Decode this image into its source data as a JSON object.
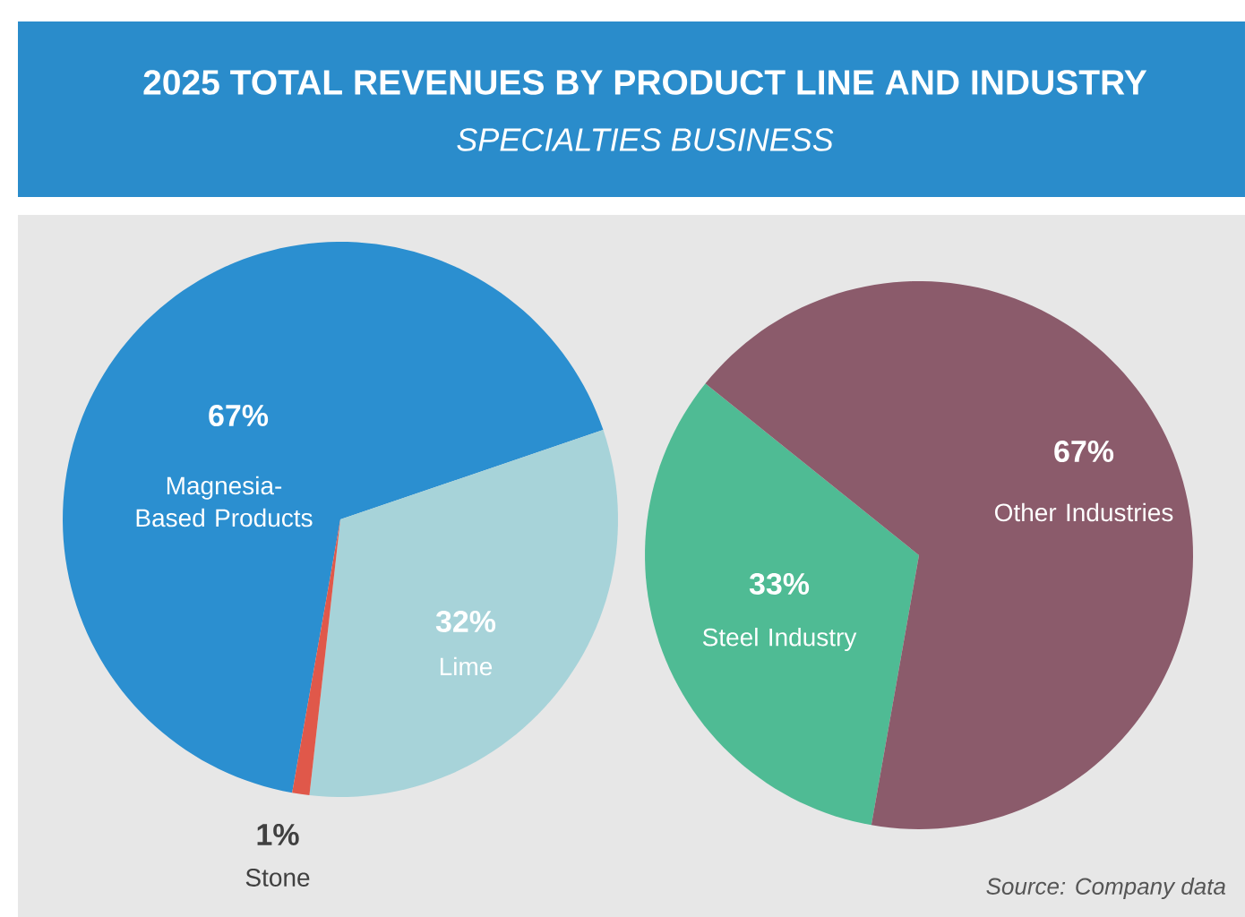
{
  "chart_data": [
    {
      "type": "pie",
      "title": "2025 TOTAL REVENUES BY PRODUCT LINE AND INDUSTRY",
      "subtitle": "SPECIALTIES BUSINESS",
      "categories": [
        "Magnesia-Based Products",
        "Lime",
        "Stone"
      ],
      "values": [
        67,
        32,
        1
      ],
      "value_labels": [
        "67%",
        "32%",
        "1%"
      ],
      "colors": [
        "#2b8fd0",
        "#a7d3d9",
        "#e0584a"
      ]
    },
    {
      "type": "pie",
      "categories": [
        "Steel Industry",
        "Other Industries"
      ],
      "values": [
        33,
        67
      ],
      "value_labels": [
        "33%",
        "67%"
      ],
      "colors": [
        "#4fbb94",
        "#8b5b6b"
      ],
      "annotations": [
        "Source: Company data"
      ]
    }
  ]
}
